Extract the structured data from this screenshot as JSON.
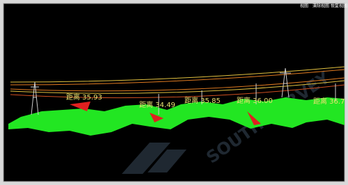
{
  "toolbar": {
    "buttons": [
      "视图",
      "清除视图",
      "恢复视图"
    ]
  },
  "distance_labels": [
    "距离 35.93",
    "距离 34.49",
    "距离 35.85",
    "距离 36.00",
    "距离 36.7"
  ]
}
